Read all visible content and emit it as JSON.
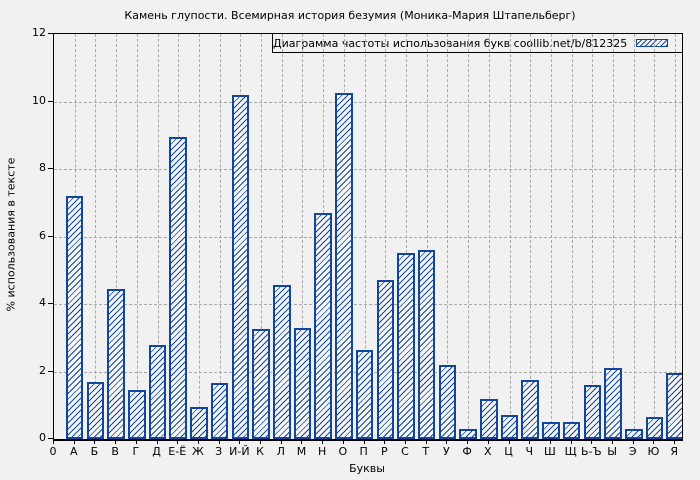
{
  "chart_data": {
    "type": "bar",
    "title": "Камень глупости. Всемирная история безумия (Моника-Мария Штапельберг)",
    "legend": "Диаграмма частоты использования букв coollib.net/b/812325",
    "legend_position": "top-right-boxed",
    "xlabel": "Буквы",
    "ylabel": "% использования в тексте",
    "ylim": [
      0,
      12
    ],
    "yticks": [
      0,
      2,
      4,
      6,
      8,
      10,
      12
    ],
    "grid": true,
    "categories": [
      "0",
      "А",
      "Б",
      "В",
      "Г",
      "Д",
      "Е-Ё",
      "Ж",
      "З",
      "И-Й",
      "К",
      "Л",
      "М",
      "Н",
      "О",
      "П",
      "Р",
      "С",
      "Т",
      "У",
      "Ф",
      "Х",
      "Ц",
      "Ч",
      "Ш",
      "Щ",
      "Ь-Ъ",
      "Ы",
      "Э",
      "Ю",
      "Я"
    ],
    "values": [
      null,
      7.2,
      1.7,
      4.45,
      1.45,
      2.8,
      8.95,
      0.95,
      1.65,
      10.2,
      3.25,
      4.55,
      3.3,
      6.7,
      10.25,
      2.65,
      4.7,
      5.5,
      5.6,
      2.2,
      0.3,
      1.2,
      0.7,
      1.75,
      0.5,
      0.5,
      1.6,
      2.1,
      0.3,
      0.65,
      1.95
    ],
    "bar_color": "#1146a0",
    "bar_fill": "hatched-diagonal",
    "background": "#f1f1f1",
    "grid_color": "#a9a9a9"
  }
}
